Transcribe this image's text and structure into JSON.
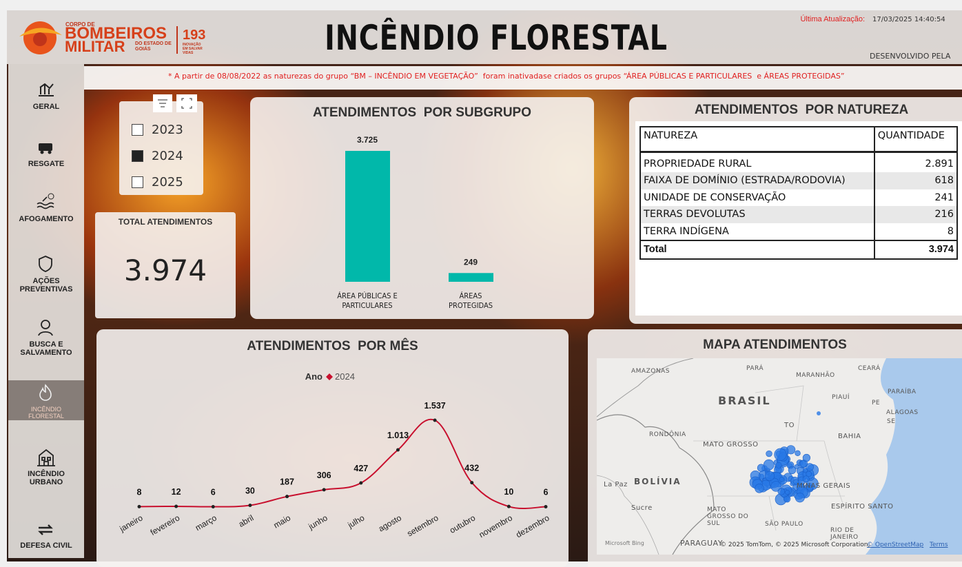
{
  "header": {
    "logo": {
      "line1": "CORPO DE",
      "line2": "BOMBEIROS",
      "line3": "MILITAR",
      "line4": "DO ESTADO DE GOIÁS",
      "number": "193",
      "tagline": "INOVAÇÃO EM SALVAR VIDAS"
    },
    "title": "INCÊNDIO FLORESTAL",
    "update_label": "Última Atualização:",
    "update_value": "17/03/2025 14:40:54",
    "developed_by": "DESENVOLVIDO PELA"
  },
  "nav": [
    {
      "label": "GERAL",
      "active": false
    },
    {
      "label": "RESGATE",
      "active": false
    },
    {
      "label": "AFOGAMENTO",
      "active": false
    },
    {
      "label": "AÇÕES PREVENTIVAS",
      "active": false
    },
    {
      "label": "BUSCA E SALVAMENTO",
      "active": false
    },
    {
      "label": "INCÊNDIO FLORESTAL",
      "active": true
    },
    {
      "label": "INCÊNDIO URBANO",
      "active": false
    },
    {
      "label": "DEFESA CIVIL",
      "active": false
    }
  ],
  "notice": "* A partir de 08/08/2022 as naturezas do grupo “BM – INCÊNDIO EM VEGETAÇÃO”  foram inativadase criados os grupos “ÁREA PÚBLICAS E PARTICULARES  e ÁREAS PROTEGIDAS”",
  "year_filter": {
    "options": [
      {
        "label": "2023",
        "checked": false
      },
      {
        "label": "2024",
        "checked": true
      },
      {
        "label": "2025",
        "checked": false
      }
    ]
  },
  "kpi": {
    "label": "TOTAL ATENDIMENTOS",
    "value": "3.974"
  },
  "subgroup_chart": {
    "type": "bar",
    "title": "ATENDIMENTOS  POR SUBGRUPO",
    "categories": [
      "ÁREA PÚBLICAS E PARTICULARES",
      "ÁREAS PROTEGIDAS"
    ],
    "values": [
      3725,
      249
    ],
    "value_labels": [
      "3.725",
      "249"
    ],
    "color": "#01b8aa"
  },
  "monthly_chart": {
    "type": "line",
    "title": "ATENDIMENTOS  POR MÊS",
    "legend_title": "Ano",
    "categories": [
      "janeiro",
      "fevereiro",
      "março",
      "abril",
      "maio",
      "junho",
      "julho",
      "agosto",
      "setembro",
      "outubro",
      "novembro",
      "dezembro"
    ],
    "series": [
      {
        "name": "2024",
        "color": "#c8102e",
        "values": [
          8,
          12,
          6,
          30,
          187,
          306,
          427,
          1013,
          1537,
          432,
          10,
          6
        ],
        "value_labels": [
          "8",
          "12",
          "6",
          "30",
          "187",
          "306",
          "427",
          "1.013",
          "1.537",
          "432",
          "10",
          "6"
        ]
      }
    ]
  },
  "natureza_table": {
    "title": "ATENDIMENTOS  POR NATUREZA",
    "columns": [
      "NATUREZA",
      "QUANTIDADE"
    ],
    "rows": [
      [
        "PROPRIEDADE RURAL",
        "2.891"
      ],
      [
        "FAIXA DE DOMÍNIO (ESTRADA/RODOVIA)",
        "618"
      ],
      [
        "UNIDADE DE CONSERVAÇÃO",
        "241"
      ],
      [
        "TERRAS DEVOLUTAS",
        "216"
      ],
      [
        "TERRA INDÍGENA",
        "8"
      ]
    ],
    "total": [
      "Total",
      "3.974"
    ]
  },
  "map": {
    "title": "MAPA ATENDIMENTOS",
    "labels": [
      "AMAZONAS",
      "PARÁ",
      "MARANHÃO",
      "CEARÁ",
      "PIAUÍ",
      "PE",
      "PARAÍBA",
      "ALAGOAS",
      "SE",
      "BRASIL",
      "TO",
      "BAHIA",
      "RONDÔNIA",
      "MATO GROSSO",
      "La Paz",
      "BOLÍVIA",
      "MINAS GERAIS",
      "Sucre",
      "MATO GROSSO DO SUL",
      "ESPÍRITO SANTO",
      "SÃO PAULO",
      "RIO DE JANEIRO",
      "PARAGUAY"
    ],
    "bing": "Microsoft Bing",
    "attribution": "© 2025 TomTom, © 2025 Microsoft Corporation,",
    "osm": "© OpenStreetMap",
    "terms": "Terms"
  }
}
